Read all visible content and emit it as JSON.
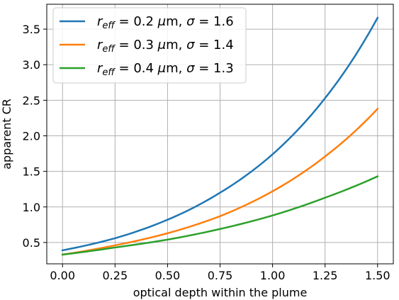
{
  "chart_data": {
    "type": "line",
    "xlabel": "optical depth within the plume",
    "ylabel": "apparent CR",
    "xlim": [
      -0.075,
      1.575
    ],
    "ylim": [
      0.2,
      3.85
    ],
    "xticks": [
      0.0,
      0.25,
      0.5,
      0.75,
      1.0,
      1.25,
      1.5
    ],
    "xtick_labels": [
      "0.00",
      "0.25",
      "0.50",
      "0.75",
      "1.00",
      "1.25",
      "1.50"
    ],
    "yticks": [
      0.5,
      1.0,
      1.5,
      2.0,
      2.5,
      3.0,
      3.5
    ],
    "ytick_labels": [
      "0.5",
      "1.0",
      "1.5",
      "2.0",
      "2.5",
      "3.0",
      "3.5"
    ],
    "grid": true,
    "legend_position": "top-left",
    "x": [
      0.0,
      0.25,
      0.5,
      0.75,
      1.0,
      1.25,
      1.5
    ],
    "series": [
      {
        "legend": {
          "prefix": "r",
          "sub": "eff",
          "eq1": " = 0.2 ",
          "mu": "μ",
          "unit": "m, ",
          "sigma": "σ",
          "eq2": " = 1.6"
        },
        "color": "#1f77b4",
        "values": [
          0.39,
          0.56,
          0.82,
          1.2,
          1.74,
          2.53,
          3.66
        ]
      },
      {
        "legend": {
          "prefix": "r",
          "sub": "eff",
          "eq1": " = 0.3 ",
          "mu": "μ",
          "unit": "m, ",
          "sigma": "σ",
          "eq2": " = 1.4"
        },
        "color": "#ff7f0e",
        "values": [
          0.33,
          0.46,
          0.63,
          0.87,
          1.22,
          1.71,
          2.38
        ]
      },
      {
        "legend": {
          "prefix": "r",
          "sub": "eff",
          "eq1": " = 0.4 ",
          "mu": "μ",
          "unit": "m, ",
          "sigma": "σ",
          "eq2": " = 1.3"
        },
        "color": "#2ca02c",
        "values": [
          0.33,
          0.43,
          0.54,
          0.69,
          0.88,
          1.13,
          1.43
        ]
      }
    ]
  }
}
